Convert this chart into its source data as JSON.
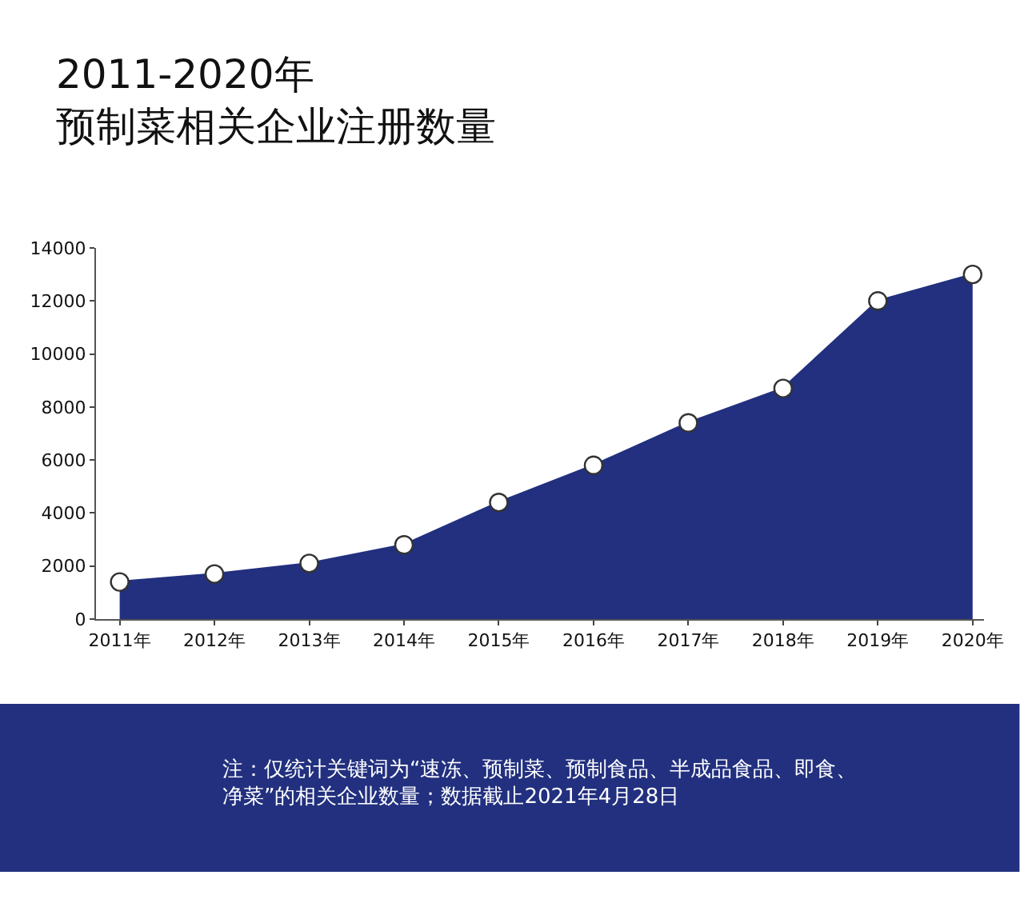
{
  "chart_data": {
    "type": "area",
    "title": "2011-2020年",
    "subtitle": "预制菜相关企业注册数量",
    "categories": [
      "2011年",
      "2012年",
      "2013年",
      "2014年",
      "2015年",
      "2016年",
      "2017年",
      "2018年",
      "2019年",
      "2020年"
    ],
    "values": [
      1400,
      1700,
      2100,
      2800,
      4400,
      5800,
      7400,
      8700,
      12000,
      13000
    ],
    "color": "#22307f",
    "ylim": [
      0,
      14000
    ],
    "yticks": [
      0,
      2000,
      4000,
      6000,
      8000,
      10000,
      12000,
      14000
    ],
    "marker": "circle",
    "annotations": [
      "注：仅统计关键词为“速冻、预制菜、预制食品、半成品食品、即食、净菜”的相关企业数量；数据截止2021年4月28日"
    ]
  }
}
